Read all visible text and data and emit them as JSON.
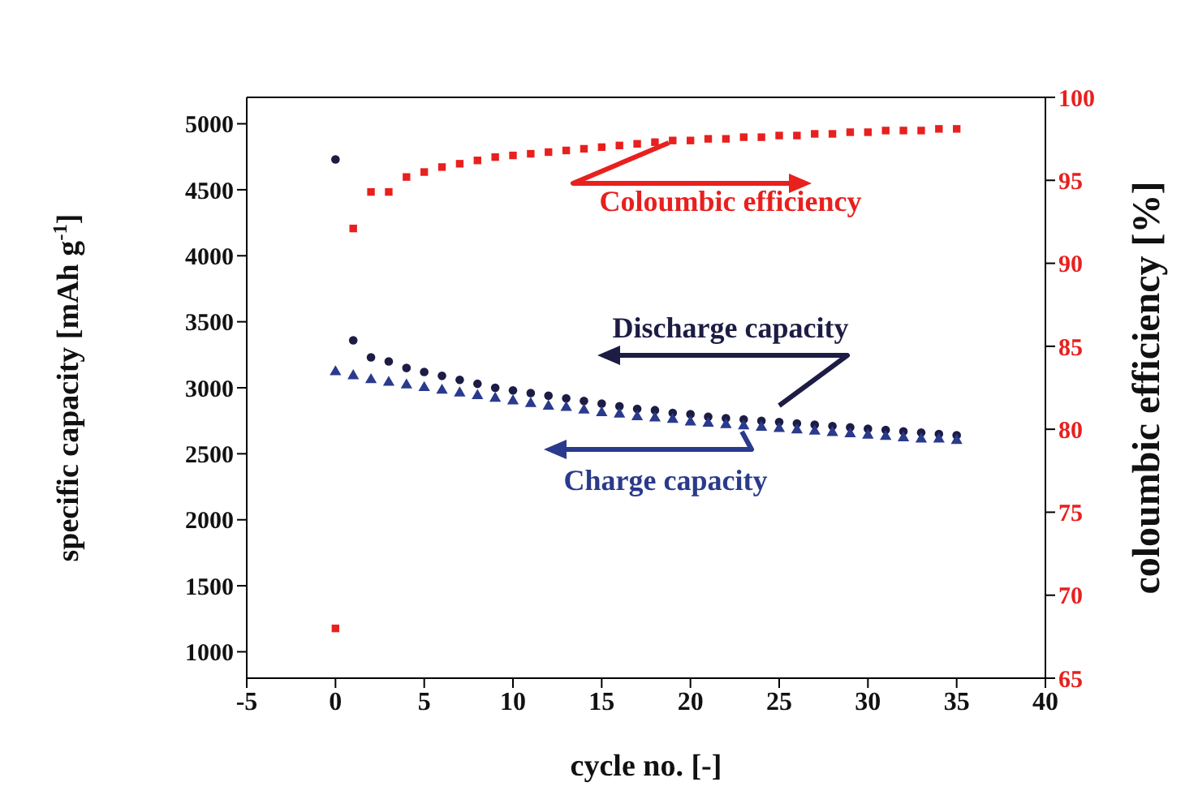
{
  "chart_data": {
    "type": "scatter",
    "xlabel": "cycle no. [-]",
    "ylabel": "specific capacity [mAh g$^{-1}$]",
    "y2label": "coloumbic efficiency [%]",
    "x": [
      0,
      1,
      2,
      3,
      4,
      5,
      6,
      7,
      8,
      9,
      10,
      11,
      12,
      13,
      14,
      15,
      16,
      17,
      18,
      19,
      20,
      21,
      22,
      23,
      24,
      25,
      26,
      27,
      28,
      29,
      30,
      31,
      32,
      33,
      34,
      35
    ],
    "xlim": [
      -5,
      40
    ],
    "xticks": [
      -5,
      0,
      5,
      10,
      15,
      20,
      25,
      30,
      35,
      40
    ],
    "ylim": [
      800,
      5200
    ],
    "yticks": [
      1000,
      1500,
      2000,
      2500,
      3000,
      3500,
      4000,
      4500,
      5000
    ],
    "y2lim": [
      65,
      100
    ],
    "y2ticks": [
      65,
      70,
      75,
      80,
      85,
      90,
      95,
      100
    ],
    "grid": false,
    "legend": "center",
    "series": [
      {
        "name": "Coloumbic efficiency",
        "color": "#e8201e",
        "marker": "square",
        "axis": "y2",
        "values": [
          68,
          92.1,
          94.3,
          94.3,
          95.2,
          95.5,
          95.8,
          96.0,
          96.2,
          96.4,
          96.5,
          96.6,
          96.7,
          96.8,
          96.9,
          97.0,
          97.1,
          97.2,
          97.3,
          97.4,
          97.4,
          97.5,
          97.5,
          97.6,
          97.6,
          97.7,
          97.7,
          97.8,
          97.8,
          97.9,
          97.9,
          98.0,
          98.0,
          98.0,
          98.1,
          98.1
        ]
      },
      {
        "name": "Discharge capacity",
        "color": "#1c1c44",
        "marker": "circle",
        "values": [
          4730,
          3360,
          3230,
          3200,
          3150,
          3120,
          3090,
          3060,
          3030,
          3000,
          2980,
          2960,
          2940,
          2920,
          2900,
          2880,
          2860,
          2840,
          2830,
          2810,
          2800,
          2780,
          2770,
          2760,
          2750,
          2740,
          2730,
          2720,
          2710,
          2700,
          2690,
          2680,
          2670,
          2660,
          2650,
          2640
        ]
      },
      {
        "name": "Charge capacity",
        "color": "#2a3a8c",
        "marker": "triangle",
        "values": [
          3120,
          3090,
          3060,
          3040,
          3020,
          3000,
          2980,
          2960,
          2940,
          2920,
          2900,
          2880,
          2860,
          2850,
          2830,
          2810,
          2800,
          2780,
          2770,
          2760,
          2740,
          2730,
          2720,
          2710,
          2700,
          2690,
          2680,
          2670,
          2660,
          2650,
          2640,
          2630,
          2620,
          2610,
          2610,
          2600
        ]
      }
    ]
  }
}
